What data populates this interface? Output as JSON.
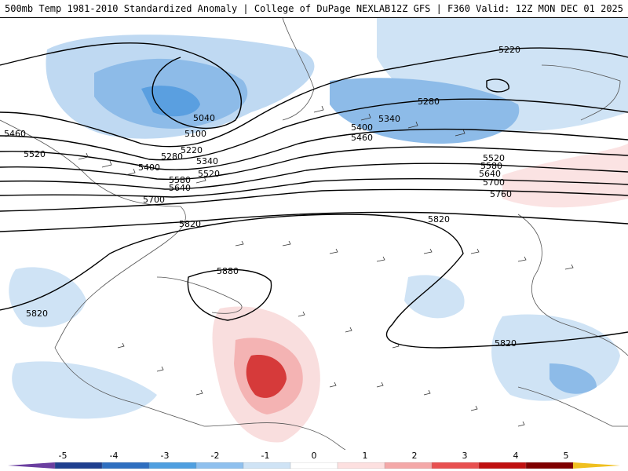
{
  "header": {
    "left_title": "500mb Temp 1981-2010 Standardized Anomaly | College of DuPage NEXLAB",
    "right_title": "12Z GFS | F360 Valid: 12Z MON DEC 01 2025"
  },
  "contour_labels": [
    "5220",
    "5280",
    "5340",
    "5400",
    "5460",
    "5520",
    "5580",
    "5640",
    "5700",
    "5760",
    "5820",
    "5880",
    "5040",
    "5100",
    "5460",
    "5520",
    "5220",
    "5280",
    "5340",
    "5400",
    "5520",
    "5580",
    "5640",
    "5700",
    "5820",
    "5820",
    "5820"
  ],
  "legend": {
    "ticks": [
      "-5",
      "-4",
      "-3",
      "-2",
      "-1",
      "0",
      "1",
      "2",
      "3",
      "4",
      "5"
    ],
    "colors": [
      "#6b3fa0",
      "#1f3f8f",
      "#2f6fc0",
      "#4f9fe0",
      "#8fc0ee",
      "#cfe3f5",
      "#ffffff",
      "#fde0e0",
      "#f4a8a8",
      "#e85050",
      "#c01010",
      "#800000",
      "#f0c020"
    ]
  },
  "colors": {
    "cold_anomaly": "#9dc4ee",
    "cold_strong": "#5a9fe0",
    "warm_anomaly": "#f4c7c7",
    "warm_strong": "#d63a3a",
    "contour": "#000000",
    "coastline": "#555555"
  }
}
